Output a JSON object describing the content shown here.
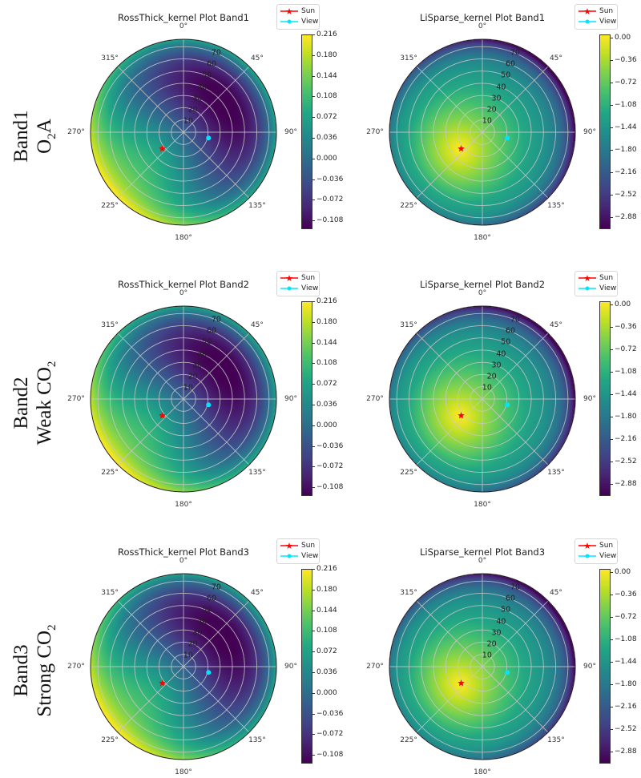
{
  "rows": [
    {
      "band": "Band1",
      "name_main": "O",
      "name_sub": "2",
      "name_tail": "A"
    },
    {
      "band": "Band2",
      "name_main": "Weak CO",
      "name_sub": "2",
      "name_tail": ""
    },
    {
      "band": "Band3",
      "name_main": "Strong CO",
      "name_sub": "2",
      "name_tail": ""
    }
  ],
  "angle_labels": [
    "0°",
    "45°",
    "90°",
    "135°",
    "180°",
    "225°",
    "270°",
    "315°"
  ],
  "radial_labels": [
    "10",
    "20",
    "30",
    "40",
    "50",
    "60",
    "70"
  ],
  "legend": {
    "sun": "Sun",
    "view": "View"
  },
  "colors": {
    "sun": "#ff0000",
    "view": "#00e5ff",
    "grid": "#c8c8c8",
    "colormap": "viridis"
  },
  "chart_data": [
    {
      "type": "heatmap",
      "projection": "polar",
      "kernel": "RossThick",
      "title": "RossThick_kernel Plot Band1",
      "rlim": [
        0,
        76
      ],
      "clim": [
        -0.123,
        0.216
      ],
      "colorbar_ticks": [
        "0.216",
        "0.180",
        "0.144",
        "0.108",
        "0.072",
        "0.036",
        "0.000",
        "−0.036",
        "−0.072",
        "−0.108"
      ],
      "sun": {
        "zenith": 22,
        "azimuth": 232
      },
      "view": {
        "zenith": 21,
        "azimuth": 103
      }
    },
    {
      "type": "heatmap",
      "projection": "polar",
      "kernel": "LiSparse",
      "title": "LiSparse_kernel Plot Band1",
      "rlim": [
        0,
        76
      ],
      "clim": [
        -3.07,
        0.05
      ],
      "colorbar_ticks": [
        "0.00",
        "−0.36",
        "−0.72",
        "−1.08",
        "−1.44",
        "−1.80",
        "−2.16",
        "−2.52",
        "−2.88"
      ],
      "sun": {
        "zenith": 22,
        "azimuth": 232
      },
      "view": {
        "zenith": 21,
        "azimuth": 103
      }
    },
    {
      "type": "heatmap",
      "projection": "polar",
      "kernel": "RossThick",
      "title": "RossThick_kernel Plot Band2",
      "rlim": [
        0,
        76
      ],
      "clim": [
        -0.123,
        0.216
      ],
      "colorbar_ticks": [
        "0.216",
        "0.180",
        "0.144",
        "0.108",
        "0.072",
        "0.036",
        "0.000",
        "−0.036",
        "−0.072",
        "−0.108"
      ],
      "sun": {
        "zenith": 22,
        "azimuth": 232
      },
      "view": {
        "zenith": 21,
        "azimuth": 103
      }
    },
    {
      "type": "heatmap",
      "projection": "polar",
      "kernel": "LiSparse",
      "title": "LiSparse_kernel Plot Band2",
      "rlim": [
        0,
        76
      ],
      "clim": [
        -3.07,
        0.05
      ],
      "colorbar_ticks": [
        "0.00",
        "−0.36",
        "−0.72",
        "−1.08",
        "−1.44",
        "−1.80",
        "−2.16",
        "−2.52",
        "−2.88"
      ],
      "sun": {
        "zenith": 22,
        "azimuth": 232
      },
      "view": {
        "zenith": 21,
        "azimuth": 103
      }
    },
    {
      "type": "heatmap",
      "projection": "polar",
      "kernel": "RossThick",
      "title": "RossThick_kernel Plot Band3",
      "rlim": [
        0,
        76
      ],
      "clim": [
        -0.123,
        0.216
      ],
      "colorbar_ticks": [
        "0.216",
        "0.180",
        "0.144",
        "0.108",
        "0.072",
        "0.036",
        "0.000",
        "−0.036",
        "−0.072",
        "−0.108"
      ],
      "sun": {
        "zenith": 22,
        "azimuth": 232
      },
      "view": {
        "zenith": 21,
        "azimuth": 103
      }
    },
    {
      "type": "heatmap",
      "projection": "polar",
      "kernel": "LiSparse",
      "title": "LiSparse_kernel Plot Band3",
      "rlim": [
        0,
        76
      ],
      "clim": [
        -3.07,
        0.05
      ],
      "colorbar_ticks": [
        "0.00",
        "−0.36",
        "−0.72",
        "−1.08",
        "−1.44",
        "−1.80",
        "−2.16",
        "−2.52",
        "−2.88"
      ],
      "sun": {
        "zenith": 22,
        "azimuth": 232
      },
      "view": {
        "zenith": 21,
        "azimuth": 103
      }
    }
  ]
}
